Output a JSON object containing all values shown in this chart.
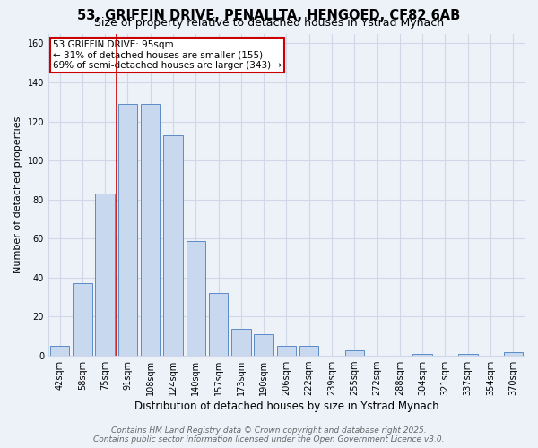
{
  "title_line1": "53, GRIFFIN DRIVE, PENALLTA, HENGOED, CF82 6AB",
  "title_line2": "Size of property relative to detached houses in Ystrad Mynach",
  "xlabel": "Distribution of detached houses by size in Ystrad Mynach",
  "ylabel": "Number of detached properties",
  "categories": [
    "42sqm",
    "58sqm",
    "75sqm",
    "91sqm",
    "108sqm",
    "124sqm",
    "140sqm",
    "157sqm",
    "173sqm",
    "190sqm",
    "206sqm",
    "222sqm",
    "239sqm",
    "255sqm",
    "272sqm",
    "288sqm",
    "304sqm",
    "321sqm",
    "337sqm",
    "354sqm",
    "370sqm"
  ],
  "values": [
    5,
    37,
    83,
    129,
    129,
    113,
    59,
    32,
    14,
    11,
    5,
    5,
    0,
    3,
    0,
    0,
    1,
    0,
    1,
    0,
    2
  ],
  "bar_color": "#c8d9ef",
  "bar_edge_color": "#5b8bc9",
  "vline_x": 2.5,
  "vline_color": "#cc0000",
  "annotation_line1": "53 GRIFFIN DRIVE: 95sqm",
  "annotation_line2": "← 31% of detached houses are smaller (155)",
  "annotation_line3": "69% of semi-detached houses are larger (343) →",
  "annotation_box_color": "#ffffff",
  "annotation_box_edge_color": "#cc0000",
  "ylim": [
    0,
    165
  ],
  "yticks": [
    0,
    20,
    40,
    60,
    80,
    100,
    120,
    140,
    160
  ],
  "footer_line1": "Contains HM Land Registry data © Crown copyright and database right 2025.",
  "footer_line2": "Contains public sector information licensed under the Open Government Licence v3.0.",
  "bg_color": "#edf2f9",
  "grid_color": "#d0d8e8",
  "title_fontsize": 10.5,
  "subtitle_fontsize": 9,
  "axis_label_fontsize": 8.5,
  "tick_fontsize": 7,
  "annotation_fontsize": 7.5,
  "footer_fontsize": 6.5
}
